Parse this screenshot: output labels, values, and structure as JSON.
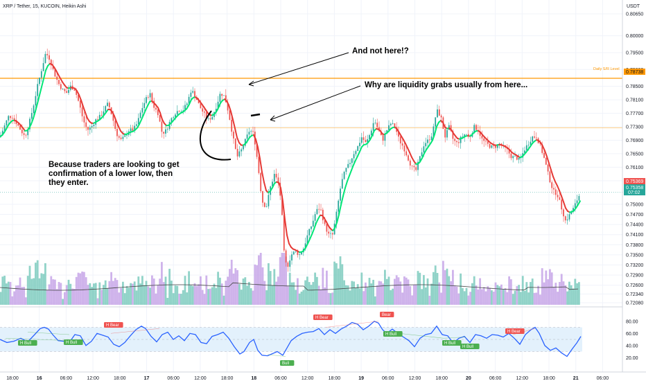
{
  "header": {
    "title": "XRP / Tether, 15, KUCOIN, Heikin Ashi",
    "currency": "USDT"
  },
  "colors": {
    "up": "#26a69a",
    "down": "#ef5350",
    "ma_up": "#00e676",
    "ma_down": "#e53935",
    "level_line": "#ff9800",
    "level_label_bg": "#ff9800",
    "price_red": "#ef5350",
    "price_green": "#26a69a",
    "vol_green": "#7ecbbe",
    "vol_purple": "#c7a6e8",
    "rsi_line": "#2962ff",
    "rsi_band": "#e3f1fc",
    "bull_tag": "#4caf50",
    "bear_tag": "#ef5350"
  },
  "annotations": {
    "note_1": "And not here!?",
    "note_2": "Why are liquidity grabs usually from here...",
    "note_3_lines": [
      "Because traders are looking to get",
      "confirmation of a lower low, then",
      "they enter."
    ]
  },
  "price_scale": {
    "ticks": [
      "0.80650",
      "0.80000",
      "0.79500",
      "0.79000",
      "0.78500",
      "0.78100",
      "0.77700",
      "0.77300",
      "0.76900",
      "0.76500",
      "0.76100",
      "0.75700",
      "0.75000",
      "0.74700",
      "0.74400",
      "0.74100",
      "0.73800",
      "0.73500",
      "0.73200",
      "0.72900",
      "0.72600",
      "0.72340",
      "0.72080"
    ],
    "level_label": "Daily S/R Level",
    "level_value": "0.78738",
    "last_price": "0.75369",
    "current_price": "0.75358",
    "countdown": "07:02"
  },
  "rsi_scale": {
    "ticks": [
      "80.00",
      "60.00",
      "40.00",
      "20.00"
    ]
  },
  "time_axis": {
    "labels": [
      "18:00",
      "16",
      "06:00",
      "12:00",
      "18:00",
      "17",
      "06:00",
      "12:00",
      "18:00",
      "18",
      "06:00",
      "12:00",
      "18:00",
      "19",
      "06:00",
      "12:00",
      "18:00",
      "20",
      "06:00",
      "12:00",
      "18:00",
      "21",
      "06:00"
    ],
    "bold": [
      "16",
      "17",
      "18",
      "19",
      "20",
      "21"
    ]
  },
  "rsi_tags": [
    {
      "text": "H Bull",
      "kind": "bull"
    },
    {
      "text": "H Bull",
      "kind": "bull"
    },
    {
      "text": "H Bear",
      "kind": "bear"
    },
    {
      "text": "Bull",
      "kind": "bull"
    },
    {
      "text": "H Bear",
      "kind": "bear"
    },
    {
      "text": "Bear",
      "kind": "bear"
    },
    {
      "text": "H Bull",
      "kind": "bull"
    },
    {
      "text": "H Bull",
      "kind": "bull"
    },
    {
      "text": "H Bull",
      "kind": "bull"
    },
    {
      "text": "H Bear",
      "kind": "bear"
    }
  ],
  "chart_data": {
    "type": "candlestick",
    "title": "XRP / Tether, 15, KUCOIN, Heikin Ashi",
    "x_range": [
      "15 18:00",
      "21 06:00"
    ],
    "y_range": [
      0.7208,
      0.8065
    ],
    "horizontal_levels": [
      {
        "label": "Daily S/R Level",
        "value": 0.78738
      },
      {
        "value": 0.7727
      }
    ],
    "close_path": [
      [
        0,
        0.77
      ],
      [
        6,
        0.773
      ],
      [
        12,
        0.776
      ],
      [
        18,
        0.776
      ],
      [
        24,
        0.774
      ],
      [
        30,
        0.772
      ],
      [
        36,
        0.77
      ],
      [
        42,
        0.774
      ],
      [
        48,
        0.779
      ],
      [
        54,
        0.785
      ],
      [
        60,
        0.79
      ],
      [
        66,
        0.795
      ],
      [
        72,
        0.793
      ],
      [
        78,
        0.789
      ],
      [
        84,
        0.786
      ],
      [
        90,
        0.784
      ],
      [
        96,
        0.783
      ],
      [
        102,
        0.785
      ],
      [
        108,
        0.784
      ],
      [
        114,
        0.78
      ],
      [
        120,
        0.775
      ],
      [
        126,
        0.772
      ],
      [
        132,
        0.773
      ],
      [
        138,
        0.775
      ],
      [
        144,
        0.776
      ],
      [
        150,
        0.778
      ],
      [
        156,
        0.78
      ],
      [
        162,
        0.776
      ],
      [
        168,
        0.771
      ],
      [
        174,
        0.769
      ],
      [
        180,
        0.77
      ],
      [
        186,
        0.772
      ],
      [
        192,
        0.772
      ],
      [
        198,
        0.774
      ],
      [
        204,
        0.778
      ],
      [
        210,
        0.781
      ],
      [
        216,
        0.783
      ],
      [
        222,
        0.779
      ],
      [
        228,
        0.777
      ],
      [
        234,
        0.771
      ],
      [
        240,
        0.772
      ],
      [
        246,
        0.775
      ],
      [
        252,
        0.777
      ],
      [
        258,
        0.778
      ],
      [
        264,
        0.778
      ],
      [
        270,
        0.78
      ],
      [
        276,
        0.784
      ],
      [
        282,
        0.782
      ],
      [
        288,
        0.779
      ],
      [
        294,
        0.777
      ],
      [
        300,
        0.775
      ],
      [
        306,
        0.776
      ],
      [
        312,
        0.779
      ],
      [
        318,
        0.783
      ],
      [
        324,
        0.782
      ],
      [
        330,
        0.777
      ],
      [
        336,
        0.77
      ],
      [
        342,
        0.764
      ],
      [
        348,
        0.766
      ],
      [
        354,
        0.769
      ],
      [
        360,
        0.772
      ],
      [
        366,
        0.771
      ],
      [
        372,
        0.762
      ],
      [
        378,
        0.751
      ],
      [
        384,
        0.749
      ],
      [
        390,
        0.755
      ],
      [
        396,
        0.759
      ],
      [
        402,
        0.756
      ],
      [
        406,
        0.75
      ],
      [
        410,
        0.735
      ],
      [
        414,
        0.731
      ],
      [
        420,
        0.735
      ],
      [
        426,
        0.736
      ],
      [
        432,
        0.735
      ],
      [
        438,
        0.737
      ],
      [
        444,
        0.741
      ],
      [
        450,
        0.744
      ],
      [
        456,
        0.748
      ],
      [
        462,
        0.749
      ],
      [
        468,
        0.744
      ],
      [
        474,
        0.741
      ],
      [
        480,
        0.741
      ],
      [
        486,
        0.748
      ],
      [
        492,
        0.756
      ],
      [
        498,
        0.76
      ],
      [
        504,
        0.762
      ],
      [
        510,
        0.765
      ],
      [
        516,
        0.767
      ],
      [
        522,
        0.77
      ],
      [
        528,
        0.768
      ],
      [
        534,
        0.771
      ],
      [
        540,
        0.775
      ],
      [
        546,
        0.772
      ],
      [
        552,
        0.769
      ],
      [
        558,
        0.772
      ],
      [
        564,
        0.774
      ],
      [
        570,
        0.773
      ],
      [
        576,
        0.769
      ],
      [
        582,
        0.767
      ],
      [
        588,
        0.764
      ],
      [
        594,
        0.761
      ],
      [
        600,
        0.76
      ],
      [
        606,
        0.764
      ],
      [
        612,
        0.768
      ],
      [
        618,
        0.769
      ],
      [
        624,
        0.771
      ],
      [
        630,
        0.778
      ],
      [
        636,
        0.776
      ],
      [
        642,
        0.77
      ],
      [
        648,
        0.773
      ],
      [
        654,
        0.769
      ],
      [
        660,
        0.768
      ],
      [
        666,
        0.77
      ],
      [
        672,
        0.771
      ],
      [
        678,
        0.77
      ],
      [
        684,
        0.773
      ],
      [
        690,
        0.772
      ],
      [
        696,
        0.769
      ],
      [
        702,
        0.768
      ],
      [
        708,
        0.767
      ],
      [
        714,
        0.767
      ],
      [
        720,
        0.768
      ],
      [
        726,
        0.767
      ],
      [
        732,
        0.766
      ],
      [
        738,
        0.764
      ],
      [
        744,
        0.764
      ],
      [
        750,
        0.763
      ],
      [
        756,
        0.766
      ],
      [
        762,
        0.768
      ],
      [
        768,
        0.77
      ],
      [
        774,
        0.77
      ],
      [
        780,
        0.767
      ],
      [
        786,
        0.763
      ],
      [
        792,
        0.758
      ],
      [
        798,
        0.754
      ],
      [
        804,
        0.753
      ],
      [
        810,
        0.749
      ],
      [
        816,
        0.745
      ],
      [
        822,
        0.747
      ],
      [
        828,
        0.749
      ],
      [
        834,
        0.752
      ],
      [
        838,
        0.7536
      ]
    ],
    "rsi": {
      "ylim": [
        10,
        90
      ],
      "band": [
        30,
        70
      ],
      "points": [
        [
          0,
          50
        ],
        [
          10,
          45
        ],
        [
          20,
          47
        ],
        [
          30,
          52
        ],
        [
          40,
          46
        ],
        [
          50,
          58
        ],
        [
          58,
          68
        ],
        [
          64,
          70
        ],
        [
          70,
          67
        ],
        [
          76,
          58
        ],
        [
          84,
          48
        ],
        [
          92,
          47
        ],
        [
          100,
          45
        ],
        [
          108,
          58
        ],
        [
          116,
          56
        ],
        [
          124,
          40
        ],
        [
          132,
          47
        ],
        [
          140,
          60
        ],
        [
          148,
          57
        ],
        [
          156,
          54
        ],
        [
          164,
          42
        ],
        [
          172,
          38
        ],
        [
          180,
          45
        ],
        [
          188,
          56
        ],
        [
          196,
          66
        ],
        [
          204,
          72
        ],
        [
          210,
          68
        ],
        [
          218,
          55
        ],
        [
          226,
          46
        ],
        [
          234,
          58
        ],
        [
          242,
          62
        ],
        [
          250,
          50
        ],
        [
          258,
          56
        ],
        [
          266,
          48
        ],
        [
          274,
          60
        ],
        [
          282,
          58
        ],
        [
          290,
          45
        ],
        [
          298,
          43
        ],
        [
          306,
          55
        ],
        [
          314,
          58
        ],
        [
          322,
          62
        ],
        [
          330,
          52
        ],
        [
          338,
          38
        ],
        [
          346,
          26
        ],
        [
          352,
          30
        ],
        [
          360,
          45
        ],
        [
          366,
          50
        ],
        [
          372,
          32
        ],
        [
          378,
          24
        ],
        [
          386,
          23
        ],
        [
          392,
          26
        ],
        [
          400,
          30
        ],
        [
          408,
          24
        ],
        [
          414,
          36
        ],
        [
          420,
          48
        ],
        [
          428,
          55
        ],
        [
          436,
          60
        ],
        [
          444,
          62
        ],
        [
          452,
          63
        ],
        [
          460,
          68
        ],
        [
          468,
          58
        ],
        [
          476,
          66
        ],
        [
          484,
          60
        ],
        [
          492,
          67
        ],
        [
          500,
          72
        ],
        [
          508,
          78
        ],
        [
          516,
          75
        ],
        [
          524,
          66
        ],
        [
          532,
          72
        ],
        [
          540,
          80
        ],
        [
          546,
          77
        ],
        [
          552,
          66
        ],
        [
          558,
          60
        ],
        [
          566,
          67
        ],
        [
          574,
          60
        ],
        [
          582,
          54
        ],
        [
          590,
          48
        ],
        [
          598,
          38
        ],
        [
          606,
          52
        ],
        [
          614,
          58
        ],
        [
          622,
          60
        ],
        [
          630,
          72
        ],
        [
          638,
          58
        ],
        [
          646,
          56
        ],
        [
          654,
          44
        ],
        [
          662,
          52
        ],
        [
          670,
          55
        ],
        [
          678,
          45
        ],
        [
          686,
          58
        ],
        [
          694,
          56
        ],
        [
          702,
          52
        ],
        [
          710,
          58
        ],
        [
          718,
          57
        ],
        [
          726,
          54
        ],
        [
          734,
          60
        ],
        [
          742,
          52
        ],
        [
          750,
          42
        ],
        [
          758,
          58
        ],
        [
          766,
          66
        ],
        [
          772,
          70
        ],
        [
          778,
          60
        ],
        [
          786,
          40
        ],
        [
          794,
          32
        ],
        [
          802,
          36
        ],
        [
          810,
          28
        ],
        [
          818,
          22
        ],
        [
          826,
          35
        ],
        [
          832,
          44
        ],
        [
          838,
          55
        ]
      ]
    }
  }
}
